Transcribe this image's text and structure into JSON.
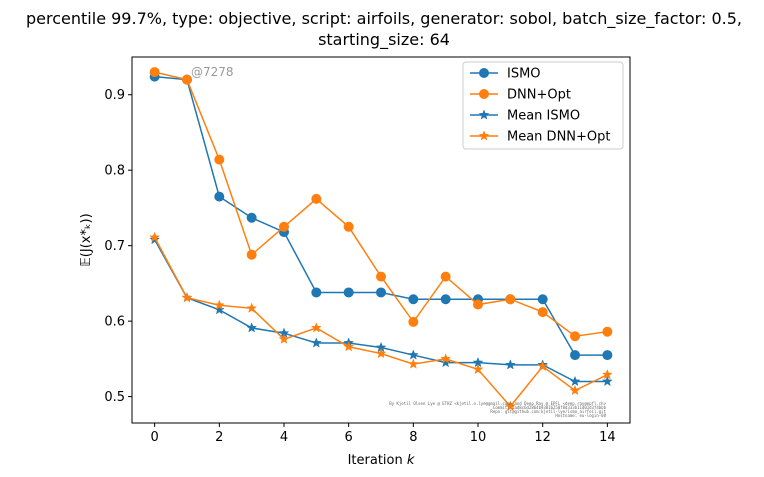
{
  "chart_data": {
    "type": "line",
    "title_lines": [
      "percentile 99.7%, type: objective, script: airfoils, generator: sobol, batch_size_factor: 0.5,",
      "starting_size: 64"
    ],
    "xlabel_prefix": "Iteration ",
    "xlabel_var": "k",
    "ylabel": "𝔼(J(x*ₖ))",
    "xlim": [
      -0.7,
      14.7
    ],
    "ylim": [
      0.465,
      0.95
    ],
    "xticks": [
      0,
      2,
      4,
      6,
      8,
      10,
      12,
      14
    ],
    "yticks": [
      0.5,
      0.6,
      0.7,
      0.8,
      0.9
    ],
    "ytick_labels": [
      "0.5",
      "0.6",
      "0.7",
      "0.8",
      "0.9"
    ],
    "x": [
      0,
      1,
      2,
      3,
      4,
      5,
      6,
      7,
      8,
      9,
      10,
      11,
      12,
      13,
      14
    ],
    "series": [
      {
        "name": "ISMO",
        "color": "#1f77b4",
        "marker": "circle",
        "values": [
          0.924,
          0.92,
          0.765,
          0.737,
          0.718,
          0.638,
          0.638,
          0.638,
          0.629,
          0.629,
          0.629,
          0.629,
          0.629,
          0.555,
          0.555
        ]
      },
      {
        "name": "DNN+Opt",
        "color": "#ff7f0e",
        "marker": "circle",
        "values": [
          0.93,
          0.92,
          0.814,
          0.688,
          0.725,
          0.762,
          0.725,
          0.659,
          0.599,
          0.659,
          0.622,
          0.629,
          0.612,
          0.58,
          0.586
        ]
      },
      {
        "name": "Mean ISMO",
        "color": "#1f77b4",
        "marker": "star",
        "values": [
          0.708,
          0.631,
          0.615,
          0.591,
          0.584,
          0.571,
          0.571,
          0.565,
          0.555,
          0.545,
          0.545,
          0.542,
          0.542,
          0.52,
          0.52
        ]
      },
      {
        "name": "Mean DNN+Opt",
        "color": "#ff7f0e",
        "marker": "star",
        "values": [
          0.711,
          0.631,
          0.621,
          0.617,
          0.576,
          0.591,
          0.566,
          0.557,
          0.543,
          0.55,
          0.536,
          0.487,
          0.54,
          0.508,
          0.529
        ]
      }
    ],
    "legend_position": "top-right",
    "grid": false,
    "annotation": "@7278",
    "footnote_lines": [
      "By Kjetil Olsen Lye @ ETHZ <kjetil.o.lye@gmail.com> and Deep Ray @ EPFL <deep.ray@epfl.ch>",
      "Commit: 1ad8c6d2864b93016250f8d333b11d01d3f4bbb",
      "Repo: git@github.com:kjetil-lye/ismo_airfoil.git",
      "Hostname: eu-login-08"
    ]
  }
}
